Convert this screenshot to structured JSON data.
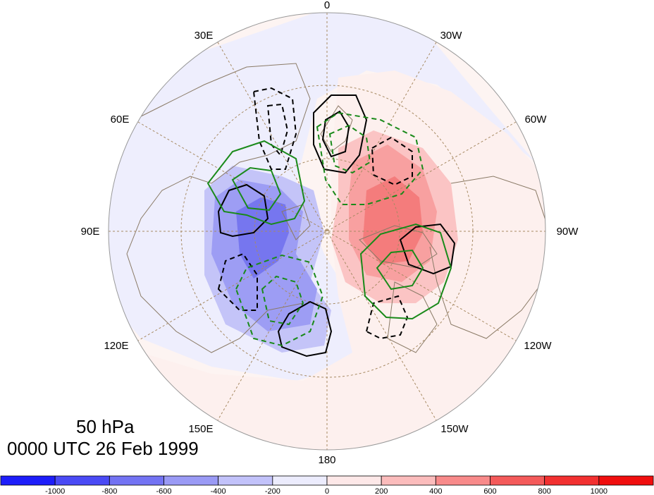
{
  "title": {
    "level": "50 hPa",
    "time": "0000 UTC 26 Feb 1999"
  },
  "map": {
    "projection": "north-polar-stereographic",
    "center_lon_label": "0",
    "longitude_labels": [
      "0",
      "30W",
      "60W",
      "90W",
      "120W",
      "150W",
      "180",
      "150E",
      "120E",
      "90E",
      "60E",
      "30E"
    ],
    "background_ocean_color": "#fdf6f4",
    "land_outline_color": "#8a7a66",
    "graticule_color": "#a78a63"
  },
  "colorbar": {
    "labels": [
      "-1000",
      "-800",
      "-600",
      "-400",
      "-200",
      "0",
      "200",
      "400",
      "600",
      "800",
      "1000"
    ],
    "colors": [
      "#1d1dfa",
      "#4a4af5",
      "#7373f3",
      "#9a9af5",
      "#c2c2fa",
      "#ececfd",
      "#fde8e8",
      "#fbbcbc",
      "#f88a8a",
      "#f45a5a",
      "#f23030",
      "#f00e0e"
    ]
  },
  "fields": {
    "shaded_negative_color": "#6a6af0",
    "shaded_positive_color": "#f06a6a",
    "contour_black_color": "#000000",
    "contour_green_color": "#1a8a1a"
  }
}
